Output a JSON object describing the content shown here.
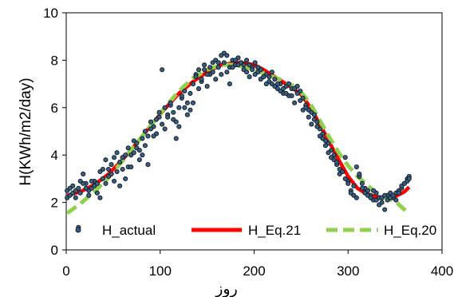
{
  "chart_data": {
    "type": "scatter",
    "xlabel": "روز",
    "ylabel": "H(KWh/m2/day)",
    "xlim": [
      0,
      400
    ],
    "ylim": [
      0,
      10
    ],
    "xticks": [
      0,
      100,
      200,
      300,
      400
    ],
    "yticks": [
      0,
      2,
      4,
      6,
      8,
      10
    ],
    "grid": false,
    "legend_position": "bottom-inside",
    "series": [
      {
        "name": "H_actual",
        "kind": "scatter",
        "color": "#1f3b57",
        "x": [
          1,
          4,
          7,
          10,
          13,
          15,
          18,
          21,
          24,
          27,
          30,
          33,
          36,
          39,
          42,
          45,
          48,
          51,
          54,
          57,
          60,
          63,
          66,
          69,
          72,
          75,
          78,
          81,
          84,
          87,
          90,
          93,
          96,
          99,
          102,
          105,
          108,
          111,
          114,
          117,
          120,
          123,
          126,
          129,
          132,
          135,
          138,
          141,
          144,
          147,
          150,
          153,
          156,
          159,
          162,
          165,
          168,
          171,
          174,
          177,
          180,
          183,
          186,
          189,
          192,
          195,
          198,
          201,
          204,
          207,
          210,
          213,
          216,
          219,
          222,
          225,
          228,
          231,
          234,
          237,
          240,
          243,
          246,
          249,
          252,
          255,
          258,
          261,
          264,
          267,
          270,
          273,
          276,
          279,
          282,
          285,
          288,
          291,
          294,
          297,
          300,
          303,
          306,
          309,
          312,
          315,
          318,
          321,
          324,
          327,
          330,
          333,
          336,
          339,
          342,
          345,
          348,
          351,
          354,
          357,
          360,
          363,
          365
        ],
        "y": [
          2.5,
          2.3,
          2.7,
          2.2,
          0.95,
          2.9,
          3.2,
          2.8,
          2.5,
          2.6,
          2.9,
          2.4,
          2.2,
          3.4,
          3.8,
          3.1,
          3.6,
          3.9,
          4.1,
          3.7,
          3.4,
          3.0,
          3.5,
          4.0,
          4.6,
          4.3,
          3.8,
          4.7,
          5.0,
          4.8,
          5.4,
          5.2,
          4.9,
          5.6,
          7.6,
          5.1,
          5.7,
          6.1,
          5.5,
          4.7,
          6.0,
          6.4,
          6.7,
          6.2,
          5.9,
          7.0,
          7.4,
          6.8,
          7.1,
          7.6,
          6.9,
          7.4,
          7.9,
          7.2,
          7.7,
          8.2,
          8.3,
          7.5,
          7.0,
          8.0,
          7.8,
          8.1,
          7.9,
          7.6,
          8.0,
          7.8,
          7.7,
          7.9,
          7.5,
          7.6,
          7.3,
          7.4,
          7.1,
          7.5,
          7.2,
          6.8,
          7.0,
          6.6,
          6.9,
          6.5,
          6.8,
          6.2,
          6.9,
          6.7,
          6.4,
          6.1,
          5.9,
          5.8,
          5.5,
          5.4,
          5.1,
          4.9,
          4.6,
          4.5,
          4.2,
          3.8,
          3.6,
          3.4,
          3.3,
          3.9,
          2.9,
          2.5,
          2.3,
          3.5,
          3.1,
          2.8,
          2.6,
          2.5,
          2.3,
          2.1,
          2.4,
          2.2,
          2.0,
          1.7,
          2.3,
          2.4,
          2.2,
          2.1,
          2.5,
          2.6,
          2.8,
          3.0,
          3.1
        ],
        "y2": [
          2.2,
          2.6,
          2.4,
          2.5,
          2.6,
          2.4,
          2.8,
          2.6,
          2.3,
          2.9,
          2.7,
          2.8,
          3.3,
          3.0,
          2.8,
          3.4,
          3.2,
          2.9,
          3.3,
          2.7,
          3.9,
          4.0,
          4.3,
          3.5,
          4.1,
          4.5,
          4.2,
          4.0,
          4.4,
          3.6,
          5.1,
          4.8,
          5.5,
          5.8,
          5.3,
          6.0,
          5.6,
          6.2,
          5.8,
          5.4,
          5.2,
          6.5,
          6.0,
          5.7,
          6.6,
          6.2,
          7.3,
          7.6,
          7.2,
          7.8,
          7.4,
          7.7,
          7.5,
          8.0,
          7.9,
          7.4,
          7.9,
          8.2,
          7.7,
          7.7,
          8.0,
          7.8,
          7.9,
          7.8,
          7.5,
          7.3,
          7.6,
          7.4,
          7.7,
          7.2,
          7.3,
          7.0,
          7.3,
          7.0,
          6.9,
          7.0,
          6.7,
          6.8,
          6.6,
          7.0,
          6.5,
          6.8,
          6.6,
          6.3,
          5.9,
          6.0,
          5.6,
          5.3,
          5.7,
          5.2,
          4.8,
          4.7,
          4.4,
          4.1,
          3.9,
          4.0,
          3.7,
          3.2,
          3.3,
          3.0,
          2.8,
          2.4,
          2.7,
          2.2,
          3.2,
          2.6,
          2.4,
          2.3,
          2.2,
          2.5,
          2.1,
          1.9,
          2.2,
          2.3,
          2.1,
          2.2,
          2.3,
          2.4,
          2.4,
          2.7,
          2.8,
          2.9,
          3.0
        ]
      },
      {
        "name": "H_Eq.21",
        "kind": "line",
        "color": "#ff0000",
        "x": [
          1,
          15,
          30,
          45,
          60,
          75,
          90,
          105,
          120,
          135,
          150,
          165,
          180,
          190,
          200,
          210,
          220,
          230,
          240,
          250,
          260,
          270,
          280,
          290,
          300,
          310,
          320,
          330,
          340,
          350,
          360,
          365
        ],
        "y": [
          2.3,
          2.45,
          2.75,
          3.2,
          3.8,
          4.5,
          5.25,
          5.95,
          6.6,
          7.1,
          7.5,
          7.8,
          7.9,
          7.88,
          7.8,
          7.6,
          7.35,
          7.1,
          6.85,
          6.55,
          6.0,
          5.3,
          4.55,
          3.8,
          3.1,
          2.6,
          2.35,
          2.25,
          2.2,
          2.25,
          2.45,
          2.65
        ]
      },
      {
        "name": "H_Eq.20",
        "kind": "dashed-line",
        "color": "#92d050",
        "x": [
          1,
          15,
          30,
          45,
          60,
          75,
          90,
          105,
          120,
          135,
          150,
          165,
          180,
          190,
          200,
          210,
          220,
          230,
          240,
          250,
          260,
          270,
          280,
          290,
          300,
          310,
          320,
          330,
          340,
          350,
          360,
          365
        ],
        "y": [
          1.55,
          1.95,
          2.45,
          3.05,
          3.75,
          4.5,
          5.25,
          6.0,
          6.7,
          7.25,
          7.6,
          7.8,
          7.8,
          7.72,
          7.6,
          7.45,
          7.3,
          7.15,
          6.95,
          6.65,
          6.15,
          5.45,
          4.75,
          4.1,
          3.55,
          3.1,
          2.75,
          2.4,
          2.2,
          2.05,
          1.7,
          1.5
        ]
      }
    ]
  }
}
